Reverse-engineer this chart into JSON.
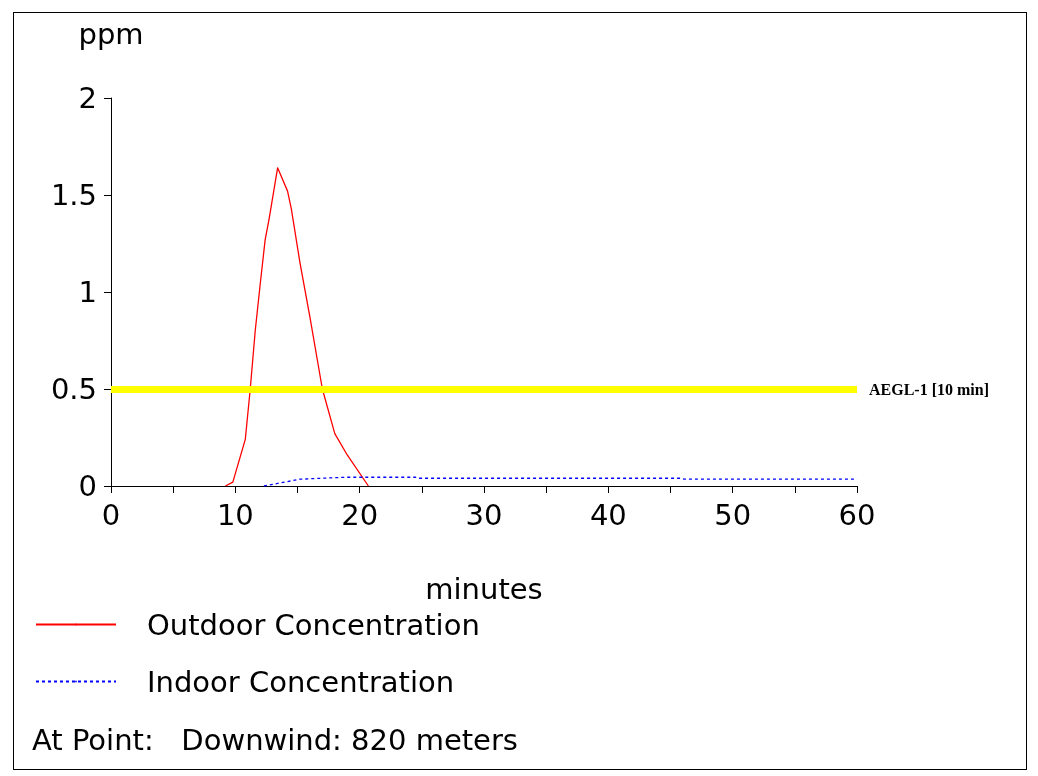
{
  "chart_data": {
    "type": "line",
    "xlabel": "minutes",
    "ylabel": "ppm",
    "xlim": [
      0,
      60
    ],
    "xticks": [
      0,
      {
        "value": 5,
        "label": null
      },
      10,
      {
        "value": 15,
        "label": null
      },
      20,
      {
        "value": 25,
        "label": null
      },
      30,
      {
        "value": 35,
        "label": null
      },
      40,
      {
        "value": 45,
        "label": null
      },
      50,
      {
        "value": 55,
        "label": null
      },
      60
    ],
    "ylim": [
      0,
      2
    ],
    "yticks": [
      0,
      0.5,
      1,
      1.5,
      2
    ],
    "series": [
      {
        "name": "Outdoor Concentration",
        "color": "#ff0000",
        "line_style": "solid",
        "x": [
          9.2,
          9.8,
          10.8,
          11.2,
          11.6,
          12,
          12.4,
          12.7,
          13.4,
          14.2,
          14.5,
          15.2,
          16,
          17,
          18,
          19,
          20.7
        ],
        "values": [
          0,
          0.02,
          0.24,
          0.5,
          0.8,
          1.04,
          1.27,
          1.37,
          1.64,
          1.52,
          1.43,
          1.15,
          0.87,
          0.5,
          0.27,
          0.16,
          0
        ]
      },
      {
        "name": "Indoor Concentration",
        "color": "#0000ff",
        "line_style": "dashed",
        "x": [
          12.3,
          15.2,
          18.8,
          24.5,
          24.7,
          45.8,
          46.1,
          60
        ],
        "values": [
          0,
          0.035,
          0.045,
          0.045,
          0.04,
          0.04,
          0.035,
          0.035
        ]
      }
    ],
    "ref_lines": [
      {
        "axis": "y",
        "value": 0.5,
        "label": "AEGL-1 [10 min]",
        "color": "#ffff00",
        "line_style": "solid"
      }
    ],
    "annotations": [
      "At Point:   Downwind: 820 meters"
    ],
    "marker": "none",
    "grid": false,
    "legend": "bottom left"
  }
}
